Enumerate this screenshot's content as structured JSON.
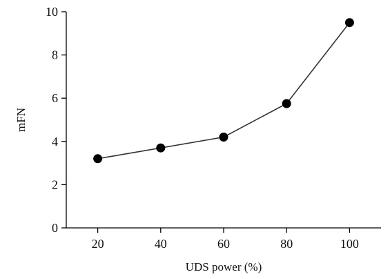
{
  "chart_data": {
    "type": "line",
    "title": "",
    "xlabel": "UDS power (%)",
    "ylabel": "mFN",
    "x": [
      20,
      40,
      60,
      80,
      100
    ],
    "series": [
      {
        "values": [
          3.2,
          3.7,
          4.2,
          5.75,
          9.5
        ]
      }
    ],
    "xticks": [
      "20",
      "40",
      "60",
      "80",
      "100"
    ],
    "yticks": [
      "0",
      "2",
      "4",
      "6",
      "8",
      "10"
    ],
    "xlim": [
      10,
      110
    ],
    "ylim": [
      0,
      10
    ],
    "grid": false,
    "colors": {
      "line": "#333333",
      "marker": "#000000",
      "axis": "#000000"
    }
  }
}
